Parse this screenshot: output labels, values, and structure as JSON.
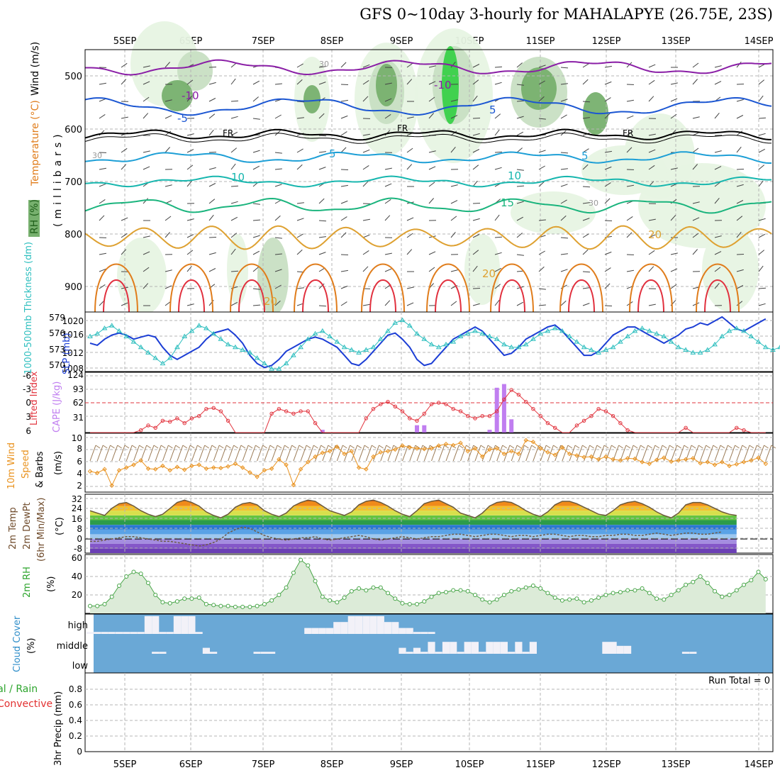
{
  "page": {
    "title": "GFS 0~10day 3-hourly for MAHALAPYE (26.75E, 23S)"
  },
  "colors": {
    "rh_fill_light": "#e7f4e3",
    "rh_fill_mid": "#c8dfc3",
    "rh_fill_dark": "#77b06e",
    "rh_fill_bright": "#39d049",
    "temp_minus10": "#8a1ea6",
    "temp_minus5": "#1b56d2",
    "temp_5": "#1d9fd6",
    "temp_10": "#16b6ae",
    "temp_15": "#1ab47d",
    "temp_20": "#dea131",
    "temp_25": "#e07d1c",
    "temp_30": "#e1303e",
    "slp": "#1c3ed5",
    "thickness": "#2fbfbf",
    "lifted_index": "#e2343e",
    "cape": "#c07ef0",
    "wind10m": "#e9921e",
    "barb10m": "#9a7a55",
    "temp_min": "#6b5a3c",
    "dewpoint": "#6e5b47",
    "rh2m": "#47a547",
    "cloud_bg": "#6aa8d6",
    "cloud_bar": "#f2f1f8",
    "precip_total": "#2ca42c",
    "precip_convective": "#e23030"
  },
  "time_axis": {
    "days": [
      "5SEP",
      "6SEP",
      "7SEP",
      "8SEP",
      "9SEP",
      "10SEP",
      "11SEP",
      "12SEP",
      "13SEP",
      "14SEP"
    ],
    "days_bottom": [
      "5SEP",
      "6SEP",
      "7SEP",
      "8SEP",
      "9SEP",
      "10SEP",
      "11SEP",
      "12SEP",
      "13SEP",
      "14SEP"
    ]
  },
  "panels": {
    "upper": {
      "ylabel_wind": "Wind (m/s)",
      "ylabel_temp": "Temperature (°C)",
      "ylabel_rh": "RH (%)",
      "ylabel_mb": "(millibars)",
      "ticks": [
        "500",
        "600",
        "700",
        "800",
        "900"
      ],
      "contour_labels": {
        "minus10": "-10",
        "minus5": "-5",
        "fr": "FR",
        "five": "5",
        "ten": "10",
        "fifteen": "15",
        "twenty": "20",
        "thirty": "30"
      }
    },
    "slp": {
      "ylabel_thick": "1000-500mb Thickness (dm)",
      "ylabel_slp": "SLP (mb)",
      "left_ticks": [
        "579",
        "576",
        "573",
        "570"
      ],
      "right_ticks": [
        "1020",
        "1016",
        "1012",
        "1008"
      ]
    },
    "cape": {
      "ylabel_li": "Lifted Index",
      "ylabel_cape": "CAPE (J/kg)",
      "left_ticks": [
        "-6",
        "-3",
        "0",
        "3",
        "6"
      ],
      "right_ticks": [
        "124",
        "93",
        "62",
        "31"
      ]
    },
    "wind": {
      "ylabel1": "10m Wind",
      "ylabel2": "Speed",
      "ylabel3": "& Barbs",
      "ylabel_unit": "(m/s)",
      "ticks": [
        "10",
        "8",
        "6",
        "4",
        "2"
      ]
    },
    "temp": {
      "ylabel1": "2m Temp",
      "ylabel2": "2m DewPt",
      "ylabel3": "(6hr Min/Max)",
      "ylabel_unit": "(°C)",
      "ticks": [
        "32",
        "24",
        "16",
        "8",
        "0",
        "-8"
      ]
    },
    "rh": {
      "ylabel": "2m RH",
      "ylabel_unit": "(%)",
      "ticks": [
        "60",
        "40",
        "20"
      ]
    },
    "cloud": {
      "ylabel": "Cloud Cover",
      "ylabel_unit": "(%)",
      "levels": [
        "high",
        "middle",
        "low"
      ]
    },
    "precip": {
      "ylabel_total": "Total / Rain",
      "ylabel_conv": "Convective",
      "ylabel_main": "3hr Precip (mm)",
      "ticks": [
        "0.8",
        "0.6",
        "0.4",
        "0.2",
        "0"
      ],
      "run_total": "Run Total = 0"
    }
  },
  "chart_data": [
    {
      "type": "line",
      "title": "Sea level pressure (mb)",
      "ylabel": "SLP (mb)",
      "ylim": [
        1008,
        1022
      ],
      "x_step_hours": 3,
      "values": [
        1015,
        1014.5,
        1016,
        1017,
        1017.5,
        1017,
        1016,
        1016.5,
        1017,
        1016.5,
        1014,
        1012,
        1011,
        1012,
        1013,
        1014,
        1016,
        1017.5,
        1018,
        1018.5,
        1017,
        1015,
        1012,
        1010,
        1009,
        1009.5,
        1011,
        1013,
        1014,
        1015,
        1016,
        1016.5,
        1016,
        1015,
        1014,
        1012,
        1010,
        1009.5,
        1011,
        1013,
        1015,
        1017,
        1017.5,
        1016,
        1014,
        1011,
        1009.5,
        1010,
        1012,
        1014,
        1016,
        1017,
        1018,
        1019,
        1018,
        1016,
        1014,
        1012,
        1012.5,
        1014,
        1016,
        1017,
        1018,
        1019,
        1019.5,
        1018,
        1016,
        1014,
        1012,
        1012,
        1013,
        1015,
        1017,
        1018,
        1019,
        1019,
        1018,
        1017,
        1016,
        1015,
        1016,
        1017,
        1018.5,
        1019,
        1020,
        1019.5,
        1020.5,
        1021.5,
        1020,
        1018.5,
        1018,
        1019,
        1020,
        1021
      ]
    },
    {
      "type": "line",
      "title": "1000-500mb Thickness (dm)",
      "ylabel": "Thickness (dm)",
      "ylim": [
        569.5,
        580
      ],
      "x_step_hours": 3,
      "values": [
        576,
        576.5,
        577.5,
        578,
        577,
        576,
        575,
        574,
        573,
        572,
        571,
        572,
        574,
        576,
        577,
        578,
        577.5,
        576.5,
        575.5,
        574.5,
        574,
        573.5,
        573,
        572,
        571,
        570,
        570,
        571,
        572.5,
        574,
        575.5,
        576.5,
        577,
        576,
        575,
        574,
        573.5,
        573,
        573.5,
        574,
        575.5,
        577,
        578.5,
        579,
        578,
        576.5,
        575.5,
        574.5,
        574,
        574.5,
        575,
        576,
        576.5,
        577,
        576.5,
        576,
        575.5,
        574.5,
        574,
        574,
        574.5,
        575.5,
        576.5,
        577,
        577.5,
        577,
        576,
        575,
        574,
        573.5,
        573,
        573.5,
        574,
        575,
        576,
        577,
        577.5,
        577,
        576.5,
        576,
        575,
        574,
        573.5,
        573,
        573,
        573.5,
        574.5,
        576,
        577,
        577.5,
        577,
        576,
        575,
        574,
        573.5,
        574
      ]
    },
    {
      "type": "bar",
      "title": "CAPE (J/kg)",
      "ylim": [
        0,
        124
      ],
      "indices": [
        32,
        45,
        46,
        55,
        56,
        57,
        58
      ],
      "values": [
        6,
        16,
        16,
        6,
        98,
        106,
        29
      ]
    },
    {
      "type": "line",
      "title": "Lifted Index",
      "ylim": [
        -6,
        6
      ],
      "x_step_hours": 3,
      "values": [
        6,
        6,
        6,
        6,
        6,
        6,
        6,
        5.5,
        4.5,
        5,
        3.5,
        3.7,
        3,
        4,
        3,
        2.5,
        1,
        0.8,
        1.5,
        3.5,
        6,
        6,
        6,
        6,
        6,
        2,
        1,
        1.5,
        2,
        1.5,
        1.5,
        4,
        6,
        6,
        6,
        6,
        6,
        6,
        3,
        1,
        0,
        -0.5,
        0.5,
        1.5,
        3,
        3.5,
        2,
        0,
        -0.3,
        0,
        1,
        1.5,
        2.5,
        3,
        2.5,
        2.5,
        1.5,
        -1,
        -3,
        -2,
        -0.5,
        1,
        2.5,
        4,
        5,
        6,
        6,
        4.5,
        3.5,
        2.5,
        1,
        1.5,
        2.5,
        4,
        5.5,
        6,
        6,
        6,
        6,
        6,
        6,
        6,
        5,
        6,
        6,
        6,
        6,
        6,
        6,
        5,
        5.5,
        6,
        6,
        6
      ]
    },
    {
      "type": "line",
      "title": "10m Wind Speed (m/s)",
      "ylim": [
        0,
        10
      ],
      "x_step_hours": 3,
      "values": [
        3.8,
        3.5,
        4.2,
        1.2,
        4,
        4.5,
        5,
        5.8,
        4.3,
        4.2,
        4.8,
        4,
        4.6,
        4.1,
        4.8,
        5,
        4.3,
        4.5,
        4.4,
        4.7,
        5.2,
        4.5,
        3.6,
        2.8,
        4,
        4.3,
        6,
        5,
        1.3,
        4.2,
        5.5,
        6.5,
        7.2,
        7.5,
        8.3,
        7,
        7.5,
        4.5,
        4.2,
        6.5,
        7.3,
        7.5,
        7.8,
        8.5,
        8.2,
        8,
        7.9,
        8,
        8.5,
        8.8,
        8.6,
        9,
        7.5,
        8,
        6.5,
        7.8,
        8,
        7,
        7.5,
        7,
        9.5,
        9.2,
        8,
        7.3,
        6.8,
        8.2,
        7,
        6.7,
        6.4,
        6.5,
        6,
        6.5,
        6,
        5.8,
        6.2,
        6.1,
        5.5,
        5.2,
        5.9,
        6.3,
        5.6,
        5.8,
        6,
        6.2,
        5.3,
        5.5,
        5,
        5.5,
        4.8,
        5.1,
        5.5,
        5.8,
        6.3,
        5.2
      ]
    },
    {
      "type": "area",
      "title": "2m Temp (°C)",
      "ylim": [
        -12,
        38
      ],
      "x_step_hours": 3,
      "values": [
        24,
        22,
        20,
        26,
        30,
        31,
        28,
        24,
        21,
        19,
        21,
        26,
        31,
        33,
        31,
        28,
        23,
        20,
        18,
        21,
        27,
        30,
        31,
        29,
        24,
        21,
        19,
        22,
        28,
        31,
        33,
        32,
        28,
        24,
        22,
        20,
        23,
        29,
        32,
        33,
        31,
        28,
        24,
        21,
        19,
        24,
        30,
        32,
        33,
        30,
        27,
        22,
        20,
        18,
        22,
        28,
        31,
        32,
        31,
        28,
        24,
        21,
        19,
        23,
        29,
        32,
        32,
        30,
        27,
        24,
        21,
        20,
        24,
        29,
        31,
        32,
        30,
        27,
        23,
        20,
        18,
        22,
        29,
        31,
        31,
        29,
        26,
        23,
        21,
        20
      ]
    },
    {
      "type": "line",
      "title": "2m DewPt (°C)",
      "ylim": [
        -12,
        38
      ],
      "x_step_hours": 3,
      "values": [
        -2,
        -2,
        -1,
        0,
        1,
        2,
        2,
        1,
        0,
        -1,
        -2,
        -2,
        -3,
        -4,
        -5,
        -6,
        -5,
        -3,
        0,
        5,
        8,
        10,
        9,
        6,
        3,
        1,
        0,
        -1,
        0,
        1,
        1,
        2,
        0,
        -1,
        0,
        1,
        2,
        3,
        2,
        0,
        -1,
        0,
        1,
        2,
        1,
        0,
        1,
        2,
        2,
        3,
        4,
        4,
        3,
        2,
        3,
        4,
        4,
        3,
        2,
        3,
        3,
        2,
        3,
        4,
        4,
        3,
        2,
        3,
        3,
        2,
        2,
        3,
        3,
        4,
        4,
        3,
        3,
        4,
        5,
        4,
        3,
        4,
        5,
        5,
        4,
        4,
        5,
        6
      ]
    },
    {
      "type": "area",
      "title": "2m RH (%)",
      "ylim": [
        0,
        60
      ],
      "x_step_hours": 3,
      "values": [
        8,
        8,
        10,
        18,
        30,
        40,
        45,
        43,
        33,
        20,
        12,
        11,
        13,
        16,
        16,
        17,
        10,
        9,
        8,
        8,
        7,
        7,
        7,
        8,
        10,
        14,
        20,
        28,
        44,
        58,
        52,
        35,
        18,
        14,
        12,
        17,
        24,
        27,
        25,
        28,
        28,
        22,
        16,
        11,
        10,
        10,
        13,
        18,
        22,
        23,
        25,
        25,
        24,
        20,
        15,
        12,
        15,
        20,
        24,
        26,
        28,
        30,
        27,
        22,
        17,
        14,
        15,
        16,
        12,
        14,
        17,
        20,
        22,
        23,
        25,
        25,
        27,
        22,
        16,
        15,
        20,
        25,
        31,
        34,
        40,
        33,
        24,
        18,
        20,
        25,
        31,
        36,
        45,
        37
      ]
    },
    {
      "type": "bar",
      "title": "Cloud Cover (%)",
      "series": [
        {
          "name": "high",
          "indices": [
            0,
            1,
            2,
            3,
            4,
            5,
            6,
            7,
            8,
            9,
            10,
            11,
            12,
            13,
            14,
            15,
            30,
            31,
            32,
            33,
            34,
            35,
            36,
            37,
            38,
            39,
            40,
            41,
            42,
            43,
            44,
            45,
            46,
            47
          ],
          "values": [
            10,
            10,
            10,
            10,
            10,
            10,
            10,
            10,
            90,
            90,
            10,
            10,
            90,
            90,
            90,
            10,
            30,
            30,
            30,
            30,
            60,
            60,
            90,
            90,
            90,
            90,
            90,
            60,
            60,
            30,
            30,
            10,
            10,
            10
          ]
        },
        {
          "name": "middle",
          "indices": [
            9,
            10,
            16,
            17,
            23,
            24,
            25,
            43,
            44,
            45,
            46,
            47,
            48,
            49,
            50,
            51,
            52,
            53,
            54,
            55,
            56,
            57,
            58,
            59,
            60,
            61,
            71,
            72,
            73,
            74,
            82,
            83
          ],
          "values": [
            10,
            10,
            30,
            10,
            10,
            10,
            10,
            30,
            10,
            30,
            10,
            60,
            10,
            60,
            60,
            10,
            60,
            60,
            10,
            60,
            60,
            60,
            10,
            60,
            10,
            60,
            60,
            60,
            40,
            40,
            10,
            10
          ]
        }
      ]
    },
    {
      "type": "bar",
      "title": "3hr Precip (mm)",
      "ylim": [
        0,
        1
      ],
      "values": []
    }
  ]
}
